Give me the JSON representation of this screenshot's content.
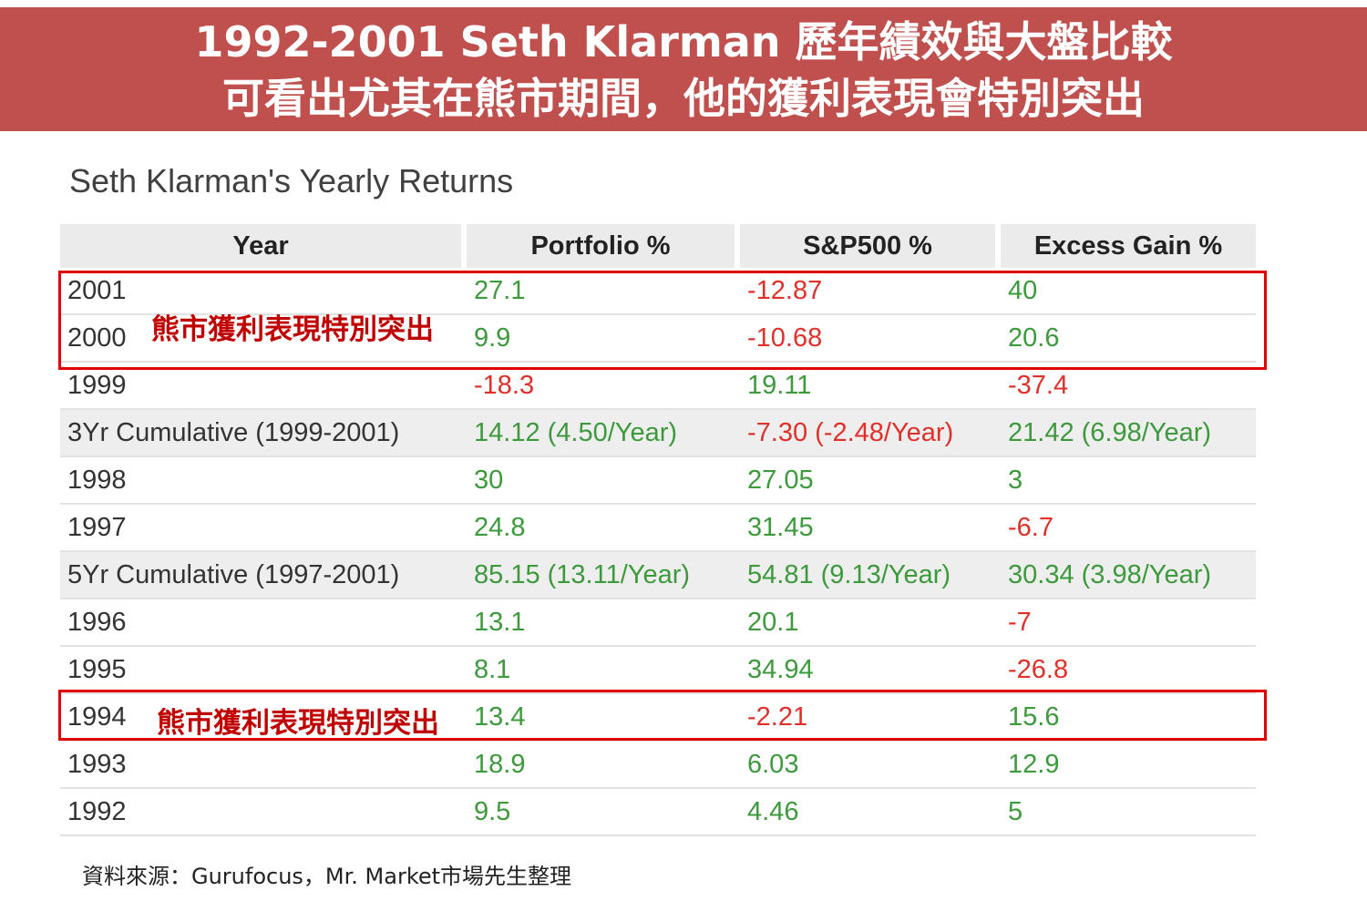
{
  "banner": {
    "line1": "1992-2001 Seth Klarman 歷年績效與大盤比較",
    "line2": "可看出尤其在熊市期間，他的獲利表現會特別突出"
  },
  "table": {
    "title": "Seth Klarman's Yearly Returns",
    "headers": [
      "Year",
      "Portfolio %",
      "S&P500 %",
      "Excess Gain %"
    ],
    "rows": [
      {
        "year": "2001",
        "portfolio": "27.1",
        "sp500": "-12.87",
        "excess": "40"
      },
      {
        "year": "2000",
        "portfolio": "9.9",
        "sp500": "-10.68",
        "excess": "20.6"
      },
      {
        "year": "1999",
        "portfolio": "-18.3",
        "sp500": "19.11",
        "excess": "-37.4"
      },
      {
        "year": "3Yr Cumulative (1999-2001)",
        "portfolio": "14.12 (4.50/Year)",
        "sp500": "-7.30 (-2.48/Year)",
        "excess": "21.42 (6.98/Year)"
      },
      {
        "year": "1998",
        "portfolio": "30",
        "sp500": "27.05",
        "excess": "3"
      },
      {
        "year": "1997",
        "portfolio": "24.8",
        "sp500": "31.45",
        "excess": "-6.7"
      },
      {
        "year": "5Yr Cumulative (1997-2001)",
        "portfolio": "85.15 (13.11/Year)",
        "sp500": "54.81 (9.13/Year)",
        "excess": "30.34 (3.98/Year)"
      },
      {
        "year": "1996",
        "portfolio": "13.1",
        "sp500": "20.1",
        "excess": "-7"
      },
      {
        "year": "1995",
        "portfolio": "8.1",
        "sp500": "34.94",
        "excess": "-26.8"
      },
      {
        "year": "1994",
        "portfolio": "13.4",
        "sp500": "-2.21",
        "excess": "15.6"
      },
      {
        "year": "1993",
        "portfolio": "18.9",
        "sp500": "6.03",
        "excess": "12.9"
      },
      {
        "year": "1992",
        "portfolio": "9.5",
        "sp500": "4.46",
        "excess": "5"
      }
    ]
  },
  "callouts": {
    "box_a": "熊市獲利表現特別突出",
    "box_b": "熊市獲利表現特別突出"
  },
  "colors": {
    "banner": "#c0504d",
    "positive": "#3c9a3c",
    "negative": "#e0302a",
    "highlight": "#e00000"
  },
  "source": "資料來源：Gurufocus，Mr. Market市場先生整理"
}
